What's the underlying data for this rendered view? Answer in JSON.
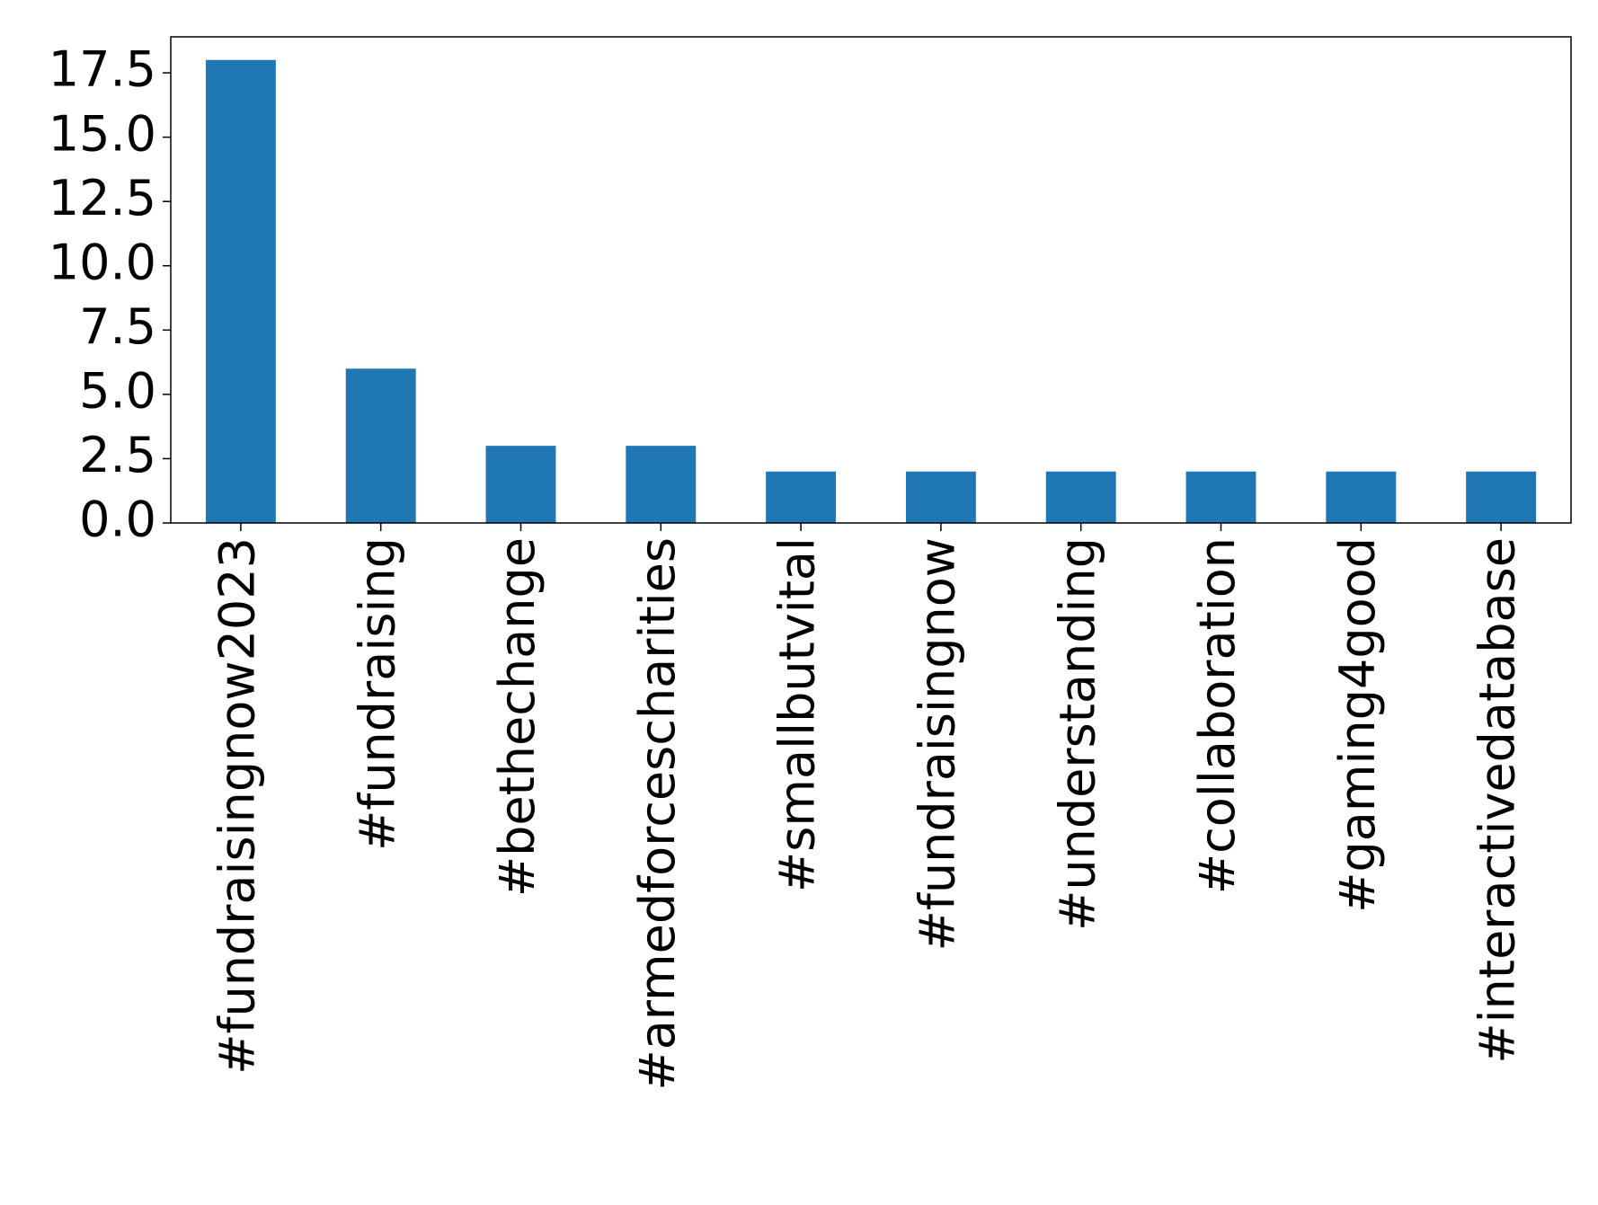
{
  "chart_data": {
    "type": "bar",
    "categories": [
      "#fundraisingnow2023",
      "#fundraising",
      "#bethechange",
      "#armedforcescharities",
      "#smallbutvital",
      "#fundraisingnow",
      "#understanding",
      "#collaboration",
      "#gaming4good",
      "#interactivedatabase"
    ],
    "values": [
      18,
      6,
      3,
      3,
      2,
      2,
      2,
      2,
      2,
      2
    ],
    "color": "#1f77b4",
    "ylim": [
      0,
      18.9
    ],
    "yticks": [
      {
        "value": 0,
        "label": "0.0"
      },
      2.5,
      {
        "value": 5,
        "label": "5.0"
      },
      7.5,
      {
        "value": 10,
        "label": "10.0"
      },
      12.5,
      {
        "value": 15,
        "label": "15.0"
      },
      17.5
    ],
    "grid": false
  }
}
